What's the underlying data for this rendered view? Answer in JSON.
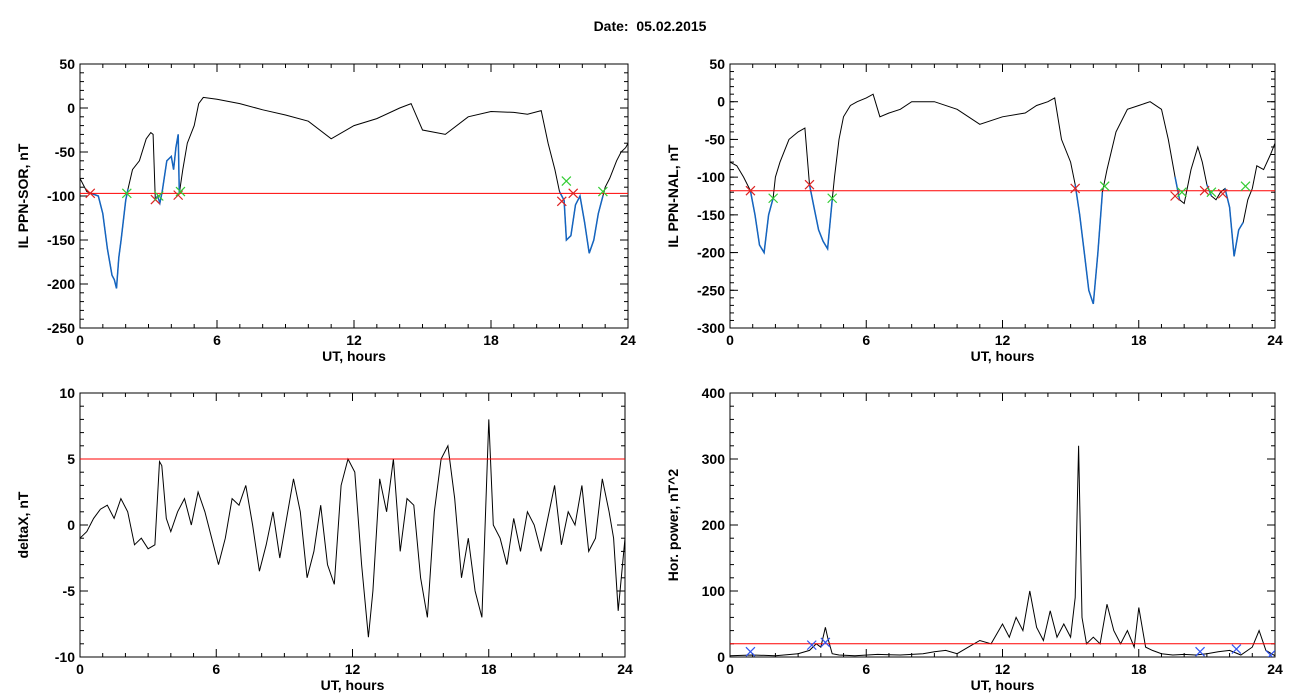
{
  "figure": {
    "date_label": "Date:",
    "date_value": "05.02.2015"
  },
  "colors": {
    "axis": "#000000",
    "threshold": "#ff0000",
    "event_segment": "#1565c0",
    "start_marker": "#33cc33",
    "end_marker": "#dd2222",
    "cross_blue": "#3355ee"
  },
  "chart_data": [
    {
      "id": "tl",
      "type": "line",
      "ylabel": "IL PPN-SOR, nT",
      "xlabel": "UT, hours",
      "xlim": [
        0,
        24
      ],
      "ylim": [
        -250,
        50
      ],
      "xticks": [
        0,
        6,
        12,
        18,
        24
      ],
      "yticks": [
        50,
        0,
        -50,
        -100,
        -150,
        -200,
        -250
      ],
      "threshold": -97,
      "series": [
        {
          "x": [
            0,
            0.3,
            0.5,
            0.8,
            1.0,
            1.2,
            1.4,
            1.5,
            1.6,
            1.7,
            1.8,
            2.0,
            2.1,
            2.3,
            2.6,
            2.9,
            3.1,
            3.2,
            3.3,
            3.4,
            3.5,
            3.6,
            3.8,
            4.0,
            4.1,
            4.2,
            4.3,
            4.35,
            4.5,
            4.7,
            5.0,
            5.2,
            5.4,
            6.0,
            7.0,
            8.0,
            9.0,
            10.0,
            11.0,
            12.0,
            13.0,
            14.0,
            14.5,
            15.0,
            16.0,
            17.0,
            18.0,
            19.0,
            19.6,
            20.2,
            20.5,
            20.8,
            21.0,
            21.1,
            21.2,
            21.3,
            21.5,
            21.7,
            21.9,
            22.1,
            22.3,
            22.5,
            22.7,
            22.9,
            23.0,
            23.2,
            23.5,
            23.7,
            23.9,
            24.0
          ],
          "y": [
            -80,
            -95,
            -97,
            -100,
            -120,
            -160,
            -190,
            -195,
            -205,
            -170,
            -150,
            -105,
            -92,
            -70,
            -60,
            -35,
            -28,
            -30,
            -104,
            -100,
            -108,
            -95,
            -60,
            -55,
            -70,
            -45,
            -30,
            -97,
            -70,
            -40,
            -20,
            5,
            12,
            10,
            5,
            -2,
            -8,
            -15,
            -35,
            -20,
            -12,
            0,
            5,
            -25,
            -30,
            -10,
            -4,
            -5,
            -7,
            -3,
            -40,
            -70,
            -95,
            -100,
            -105,
            -150,
            -145,
            -110,
            -100,
            -130,
            -165,
            -150,
            -120,
            -100,
            -90,
            -80,
            -60,
            -50,
            -45,
            -40
          ]
        }
      ],
      "events": [
        {
          "start": 0.5,
          "end": 2.1
        },
        {
          "start": 3.3,
          "end": 4.35
        },
        {
          "start": 21.0,
          "end": 22.9
        }
      ],
      "markers": [
        {
          "x": 0.45,
          "y": -97,
          "kind": "end"
        },
        {
          "x": 2.05,
          "y": -97,
          "kind": "start"
        },
        {
          "x": 3.3,
          "y": -104,
          "kind": "end"
        },
        {
          "x": 3.45,
          "y": -100,
          "kind": "start"
        },
        {
          "x": 4.3,
          "y": -99,
          "kind": "end"
        },
        {
          "x": 4.4,
          "y": -95,
          "kind": "start"
        },
        {
          "x": 21.1,
          "y": -106,
          "kind": "end"
        },
        {
          "x": 21.3,
          "y": -83,
          "kind": "start"
        },
        {
          "x": 21.6,
          "y": -97,
          "kind": "end"
        },
        {
          "x": 22.9,
          "y": -95,
          "kind": "start"
        }
      ]
    },
    {
      "id": "tr",
      "type": "line",
      "ylabel": "IL PPN-NAL, nT",
      "xlabel": "UT, hours",
      "xlim": [
        0,
        24
      ],
      "ylim": [
        -300,
        50
      ],
      "xticks": [
        0,
        6,
        12,
        18,
        24
      ],
      "yticks": [
        50,
        0,
        -50,
        -100,
        -150,
        -200,
        -250,
        -300
      ],
      "threshold": -118,
      "series": [
        {
          "x": [
            0,
            0.3,
            0.6,
            0.9,
            1.1,
            1.3,
            1.5,
            1.7,
            1.9,
            2.0,
            2.2,
            2.6,
            3.0,
            3.3,
            3.5,
            3.7,
            3.9,
            4.1,
            4.3,
            4.5,
            4.6,
            4.8,
            5.0,
            5.3,
            5.6,
            6.0,
            6.3,
            6.6,
            7.0,
            7.5,
            8.0,
            9.0,
            10.0,
            11.0,
            12.0,
            13.0,
            13.5,
            14.0,
            14.3,
            14.6,
            15.0,
            15.2,
            15.4,
            15.6,
            15.8,
            16.0,
            16.2,
            16.4,
            16.6,
            17.0,
            17.5,
            18.0,
            18.5,
            19.0,
            19.3,
            19.6,
            19.8,
            20.0,
            20.3,
            20.6,
            20.8,
            21.0,
            21.2,
            21.4,
            21.6,
            21.8,
            22.0,
            22.2,
            22.4,
            22.6,
            22.8,
            23.0,
            23.2,
            23.5,
            23.8,
            24.0
          ],
          "y": [
            -80,
            -85,
            -100,
            -118,
            -150,
            -190,
            -200,
            -150,
            -128,
            -100,
            -80,
            -50,
            -40,
            -35,
            -110,
            -140,
            -170,
            -185,
            -195,
            -130,
            -100,
            -50,
            -20,
            -5,
            0,
            5,
            10,
            -20,
            -15,
            -10,
            0,
            0,
            -10,
            -30,
            -20,
            -15,
            -5,
            0,
            5,
            -50,
            -80,
            -110,
            -150,
            -200,
            -250,
            -268,
            -200,
            -120,
            -90,
            -40,
            -10,
            -5,
            0,
            -10,
            -50,
            -100,
            -130,
            -135,
            -90,
            -60,
            -80,
            -110,
            -125,
            -130,
            -120,
            -115,
            -140,
            -205,
            -170,
            -160,
            -130,
            -115,
            -85,
            -90,
            -70,
            -55
          ]
        }
      ],
      "events": [
        {
          "start": 0.8,
          "end": 1.9
        },
        {
          "start": 3.5,
          "end": 4.5
        },
        {
          "start": 15.2,
          "end": 16.5
        },
        {
          "start": 19.6,
          "end": 19.9
        },
        {
          "start": 20.9,
          "end": 21.2
        },
        {
          "start": 21.7,
          "end": 22.7
        }
      ],
      "markers": [
        {
          "x": 0.9,
          "y": -118,
          "kind": "end"
        },
        {
          "x": 1.9,
          "y": -128,
          "kind": "start"
        },
        {
          "x": 3.5,
          "y": -110,
          "kind": "end"
        },
        {
          "x": 4.5,
          "y": -128,
          "kind": "start"
        },
        {
          "x": 15.2,
          "y": -115,
          "kind": "end"
        },
        {
          "x": 16.5,
          "y": -112,
          "kind": "start"
        },
        {
          "x": 19.6,
          "y": -125,
          "kind": "end"
        },
        {
          "x": 19.9,
          "y": -120,
          "kind": "start"
        },
        {
          "x": 20.9,
          "y": -118,
          "kind": "end"
        },
        {
          "x": 21.2,
          "y": -120,
          "kind": "start"
        },
        {
          "x": 21.7,
          "y": -122,
          "kind": "end"
        },
        {
          "x": 22.7,
          "y": -112,
          "kind": "start"
        }
      ]
    },
    {
      "id": "bl",
      "type": "line",
      "ylabel": "deltaX, nT",
      "xlabel": "UT, hours",
      "xlim": [
        0,
        24
      ],
      "ylim": [
        -10,
        10
      ],
      "xticks": [
        0,
        6,
        12,
        18,
        24
      ],
      "yticks": [
        10,
        5,
        0,
        -5,
        -10
      ],
      "threshold": 5,
      "series": [
        {
          "x": [
            0,
            0.3,
            0.6,
            0.9,
            1.2,
            1.5,
            1.8,
            2.1,
            2.4,
            2.7,
            3.0,
            3.3,
            3.5,
            3.6,
            3.8,
            4.0,
            4.3,
            4.6,
            4.9,
            5.2,
            5.5,
            5.8,
            6.1,
            6.4,
            6.7,
            7.0,
            7.3,
            7.6,
            7.9,
            8.2,
            8.5,
            8.8,
            9.1,
            9.4,
            9.7,
            10.0,
            10.3,
            10.6,
            10.9,
            11.2,
            11.5,
            11.8,
            12.1,
            12.4,
            12.7,
            12.9,
            13.2,
            13.5,
            13.8,
            14.1,
            14.4,
            14.7,
            15.0,
            15.3,
            15.6,
            15.9,
            16.2,
            16.5,
            16.8,
            17.1,
            17.4,
            17.7,
            18.0,
            18.2,
            18.5,
            18.8,
            19.1,
            19.4,
            19.7,
            20.0,
            20.3,
            20.6,
            20.9,
            21.2,
            21.5,
            21.8,
            22.1,
            22.4,
            22.7,
            23.0,
            23.3,
            23.5,
            23.7,
            24.0
          ],
          "y": [
            -1,
            -0.5,
            0.5,
            1.2,
            1.5,
            0.5,
            2,
            1,
            -1.5,
            -1,
            -1.8,
            -1.5,
            4.8,
            4.5,
            0.5,
            -0.5,
            1,
            2,
            0,
            2.5,
            1,
            -1,
            -3,
            -1,
            2,
            1.5,
            3,
            0,
            -3.5,
            -1.5,
            1,
            -2.5,
            0.5,
            3.5,
            1,
            -4,
            -2,
            1.5,
            -3,
            -4.5,
            3,
            5,
            4,
            -3,
            -8.5,
            -5,
            3.5,
            1,
            5,
            -2,
            2,
            1.5,
            -4,
            -7,
            1,
            5,
            6,
            2,
            -4,
            -1,
            -5,
            -7,
            8,
            0,
            -1,
            -3,
            0.5,
            -2,
            1,
            0,
            -2,
            0.5,
            3,
            -1.5,
            1,
            0,
            3,
            -2,
            -1,
            3.5,
            1,
            -1,
            -6.5,
            -1
          ]
        }
      ],
      "events": [],
      "markers": []
    },
    {
      "id": "br",
      "type": "line",
      "ylabel": "Hor. power, nT^2",
      "xlabel": "UT, hours",
      "xlim": [
        0,
        24
      ],
      "ylim": [
        0,
        400
      ],
      "xticks": [
        0,
        6,
        12,
        18,
        24
      ],
      "yticks": [
        400,
        300,
        200,
        100,
        0
      ],
      "threshold": 20,
      "series": [
        {
          "x": [
            0,
            1,
            2,
            3,
            3.5,
            3.8,
            4.0,
            4.2,
            4.3,
            4.5,
            4.8,
            5.5,
            6.5,
            7.5,
            8.5,
            9.0,
            9.5,
            10.0,
            10.5,
            11.0,
            11.5,
            12.0,
            12.3,
            12.6,
            12.9,
            13.2,
            13.5,
            13.8,
            14.1,
            14.4,
            14.7,
            15.0,
            15.2,
            15.35,
            15.5,
            15.7,
            16.0,
            16.3,
            16.6,
            16.9,
            17.2,
            17.5,
            17.8,
            18.0,
            18.3,
            18.6,
            19.0,
            19.5,
            20.0,
            20.5,
            21.0,
            21.5,
            22.0,
            22.5,
            23.0,
            23.3,
            23.6,
            24.0
          ],
          "y": [
            2,
            3,
            2,
            5,
            10,
            20,
            15,
            45,
            30,
            5,
            3,
            2,
            4,
            3,
            5,
            8,
            10,
            5,
            15,
            25,
            20,
            50,
            30,
            60,
            40,
            100,
            45,
            25,
            70,
            30,
            50,
            30,
            90,
            320,
            60,
            20,
            30,
            20,
            80,
            40,
            20,
            40,
            15,
            75,
            15,
            10,
            5,
            3,
            4,
            3,
            5,
            8,
            10,
            3,
            15,
            40,
            10,
            2
          ]
        }
      ],
      "events": [],
      "markers": [
        {
          "x": 0.9,
          "y": 8,
          "kind": "blue"
        },
        {
          "x": 3.6,
          "y": 18,
          "kind": "blue"
        },
        {
          "x": 4.2,
          "y": 22,
          "kind": "blue"
        },
        {
          "x": 20.7,
          "y": 8,
          "kind": "blue"
        },
        {
          "x": 22.3,
          "y": 12,
          "kind": "blue"
        },
        {
          "x": 23.8,
          "y": 3,
          "kind": "blue"
        }
      ]
    }
  ]
}
